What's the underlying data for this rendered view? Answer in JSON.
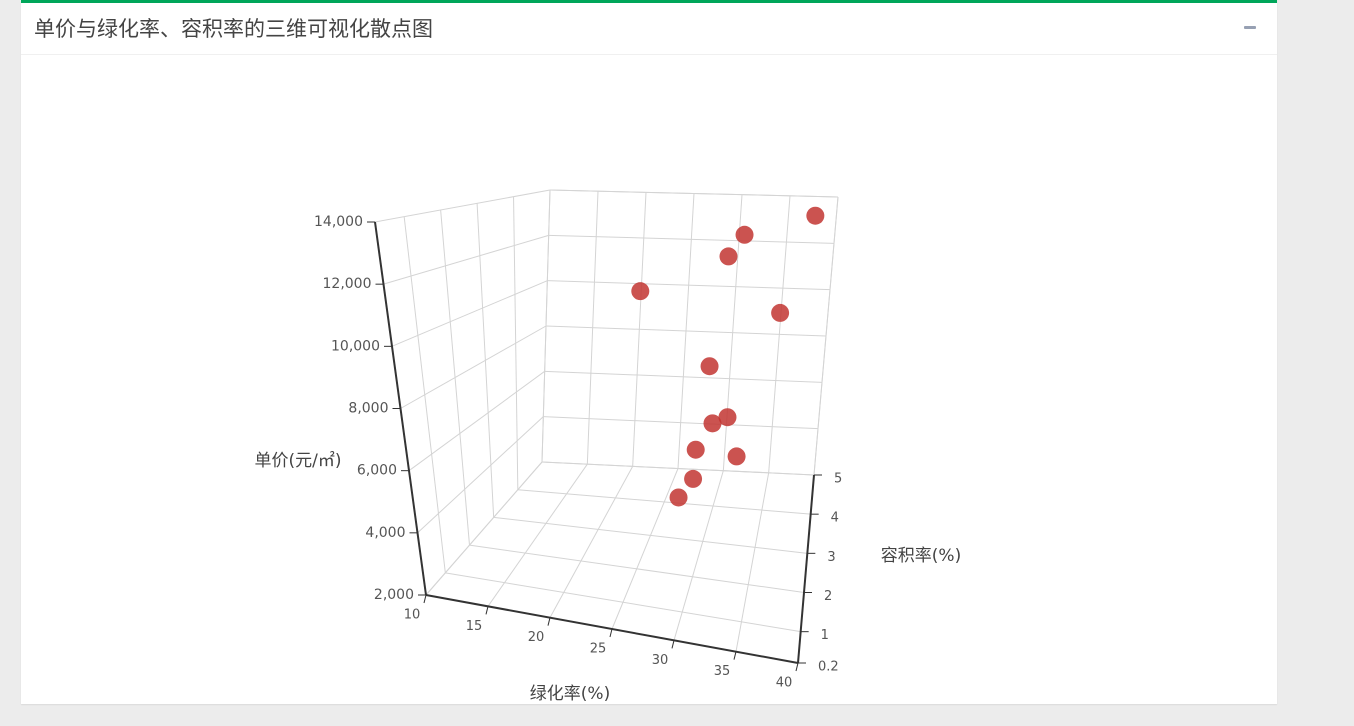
{
  "panel": {
    "title": "单价与绿化率、容积率的三维可视化散点图",
    "collapse_icon": "minus-icon",
    "accent_color": "#00a65a"
  },
  "chart_data": {
    "type": "scatter3d",
    "title": "",
    "point_color": "#c23531",
    "grid": true,
    "axes": {
      "x": {
        "label": "绿化率(%)",
        "range": [
          10,
          40
        ],
        "ticks": [
          "10",
          "15",
          "20",
          "25",
          "30",
          "35",
          "40"
        ]
      },
      "y": {
        "label": "容积率(%)",
        "range": [
          0.2,
          5
        ],
        "ticks": [
          "0.2",
          "1",
          "2",
          "3",
          "4",
          "5"
        ]
      },
      "z": {
        "label": "单价(元/㎡)",
        "range": [
          2000,
          14000
        ],
        "ticks": [
          "2,000",
          "4,000",
          "6,000",
          "8,000",
          "10,000",
          "12,000",
          "14,000"
        ]
      }
    },
    "points": [
      {
        "x": 38,
        "y": 4.3,
        "z": 13800
      },
      {
        "x": 31,
        "y": 4.6,
        "z": 12600
      },
      {
        "x": 30,
        "y": 4.2,
        "z": 12000
      },
      {
        "x": 36,
        "y": 2.8,
        "z": 11200
      },
      {
        "x": 22,
        "y": 4.0,
        "z": 10500
      },
      {
        "x": 30,
        "y": 3.0,
        "z": 8700
      },
      {
        "x": 32,
        "y": 1.1,
        "z": 8500
      },
      {
        "x": 33,
        "y": 1.3,
        "z": 8600
      },
      {
        "x": 31,
        "y": 0.8,
        "z": 7800
      },
      {
        "x": 34,
        "y": 1.0,
        "z": 7600
      },
      {
        "x": 31,
        "y": 0.6,
        "z": 7000
      },
      {
        "x": 30,
        "y": 0.5,
        "z": 6400
      }
    ]
  }
}
